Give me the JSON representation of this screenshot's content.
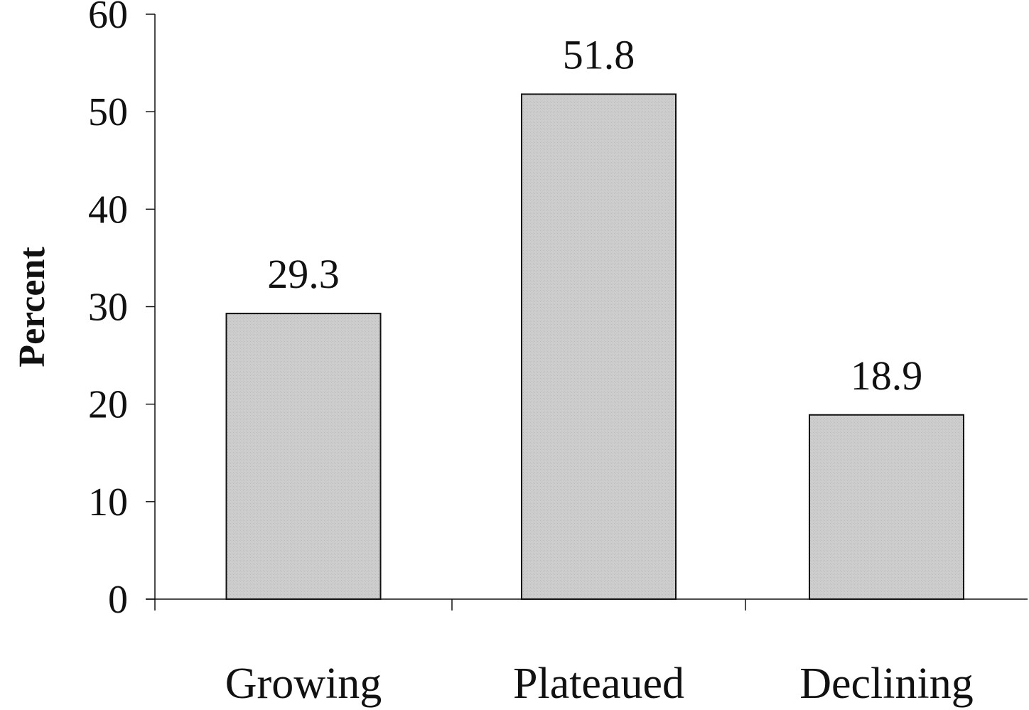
{
  "chart_data": {
    "type": "bar",
    "categories": [
      "Growing",
      "Plateaued",
      "Declining"
    ],
    "values": [
      29.3,
      51.8,
      18.9
    ],
    "value_labels": [
      "29.3",
      "51.8",
      "18.9"
    ],
    "title": "",
    "xlabel": "",
    "ylabel": "Percent",
    "ylim": [
      0,
      60
    ],
    "yticks": [
      0,
      10,
      20,
      30,
      40,
      50,
      60
    ],
    "ytick_labels": [
      "0",
      "10",
      "20",
      "30",
      "40",
      "50",
      "60"
    ],
    "grid": false,
    "legend": "none",
    "bar_color": "#c9c9c9",
    "bar_edge_color": "#111111"
  }
}
